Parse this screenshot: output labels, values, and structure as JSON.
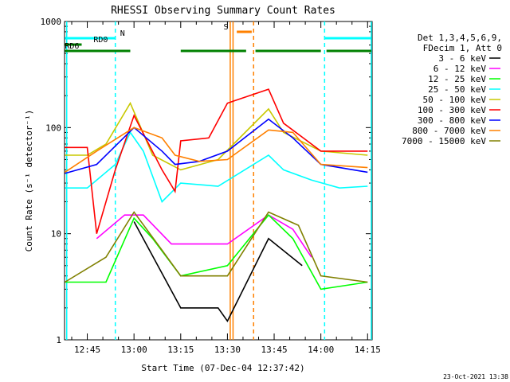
{
  "chart_data": {
    "type": "line",
    "title": "RHESSI Observing Summary Count Rates",
    "xlabel": "Start Time (07-Dec-04 12:37:42)",
    "ylabel": "Count Rate (s⁻¹ detector⁻¹)",
    "yscale": "log",
    "ylim": [
      1,
      1000
    ],
    "xlim": [
      12.6283,
      14.2744
    ],
    "yticks": [
      {
        "v": 1,
        "label": "1"
      },
      {
        "v": 10,
        "label": "10"
      },
      {
        "v": 100,
        "label": "100"
      },
      {
        "v": 1000,
        "label": "1000"
      }
    ],
    "xticks": [
      {
        "v": 12.75,
        "label": "12:45"
      },
      {
        "v": 13.0,
        "label": "13:00"
      },
      {
        "v": 13.25,
        "label": "13:15"
      },
      {
        "v": 13.5,
        "label": "13:30"
      },
      {
        "v": 13.75,
        "label": "13:45"
      },
      {
        "v": 14.0,
        "label": "14:00"
      },
      {
        "v": 14.25,
        "label": "14:15"
      }
    ],
    "legend_header": [
      "Det 1,3,4,5,6,9,",
      "FDecim 1, Att 0"
    ],
    "legend_position": "right",
    "date_stamp": "23-Oct-2021 13:38",
    "series": [
      {
        "name": "3 - 6 keV",
        "color": "#000000",
        "points": [
          [
            12.63,
            null
          ],
          [
            13.0,
            13
          ],
          [
            13.25,
            2
          ],
          [
            13.45,
            2
          ],
          [
            13.5,
            1.5
          ],
          [
            13.72,
            9
          ],
          [
            13.9,
            5
          ],
          [
            14.0,
            null
          ]
        ]
      },
      {
        "name": "6 - 12 keV",
        "color": "#ff00ff",
        "points": [
          [
            12.63,
            null
          ],
          [
            12.8,
            9
          ],
          [
            12.95,
            15
          ],
          [
            13.05,
            15
          ],
          [
            13.2,
            8
          ],
          [
            13.25,
            8
          ],
          [
            13.5,
            8
          ],
          [
            13.72,
            15
          ],
          [
            13.85,
            11
          ],
          [
            13.95,
            6
          ],
          [
            14.0,
            null
          ]
        ]
      },
      {
        "name": "12 - 25 keV",
        "color": "#00ff00",
        "points": [
          [
            12.63,
            3.5
          ],
          [
            12.85,
            3.5
          ],
          [
            13.0,
            14
          ],
          [
            13.1,
            9
          ],
          [
            13.25,
            4
          ],
          [
            13.5,
            5
          ],
          [
            13.72,
            15
          ],
          [
            13.85,
            9
          ],
          [
            14.0,
            3
          ],
          [
            14.25,
            3.5
          ]
        ]
      },
      {
        "name": "25 - 50 keV",
        "color": "#00ffff",
        "points": [
          [
            12.63,
            27
          ],
          [
            12.75,
            27
          ],
          [
            12.9,
            45
          ],
          [
            12.98,
            90
          ],
          [
            13.05,
            60
          ],
          [
            13.15,
            20
          ],
          [
            13.25,
            30
          ],
          [
            13.45,
            28
          ],
          [
            13.72,
            55
          ],
          [
            13.8,
            40
          ],
          [
            13.95,
            32
          ],
          [
            14.1,
            27
          ],
          [
            14.25,
            28
          ]
        ]
      },
      {
        "name": "50 - 100 keV",
        "color": "#c8c800",
        "points": [
          [
            12.63,
            55
          ],
          [
            12.75,
            55
          ],
          [
            12.85,
            70
          ],
          [
            12.98,
            170
          ],
          [
            13.1,
            55
          ],
          [
            13.25,
            40
          ],
          [
            13.45,
            50
          ],
          [
            13.72,
            150
          ],
          [
            13.8,
            90
          ],
          [
            14.0,
            60
          ],
          [
            14.25,
            55
          ]
        ]
      },
      {
        "name": "100 - 300 keV",
        "color": "#ff0000",
        "points": [
          [
            12.63,
            65
          ],
          [
            12.75,
            65
          ],
          [
            12.8,
            10
          ],
          [
            12.9,
            40
          ],
          [
            13.0,
            130
          ],
          [
            13.15,
            40
          ],
          [
            13.22,
            25
          ],
          [
            13.25,
            75
          ],
          [
            13.4,
            80
          ],
          [
            13.5,
            170
          ],
          [
            13.72,
            230
          ],
          [
            13.8,
            110
          ],
          [
            14.0,
            60
          ],
          [
            14.25,
            60
          ]
        ]
      },
      {
        "name": "300 - 800 keV",
        "color": "#0000ff",
        "points": [
          [
            12.63,
            37
          ],
          [
            12.8,
            45
          ],
          [
            13.0,
            100
          ],
          [
            13.15,
            60
          ],
          [
            13.22,
            45
          ],
          [
            13.35,
            48
          ],
          [
            13.5,
            60
          ],
          [
            13.72,
            120
          ],
          [
            13.85,
            80
          ],
          [
            14.0,
            45
          ],
          [
            14.25,
            38
          ]
        ]
      },
      {
        "name": "800 - 7000 keV",
        "color": "#ff8000",
        "points": [
          [
            12.63,
            38
          ],
          [
            12.8,
            60
          ],
          [
            13.0,
            100
          ],
          [
            13.15,
            80
          ],
          [
            13.22,
            55
          ],
          [
            13.35,
            48
          ],
          [
            13.5,
            50
          ],
          [
            13.72,
            95
          ],
          [
            13.85,
            90
          ],
          [
            14.0,
            45
          ],
          [
            14.25,
            42
          ]
        ]
      },
      {
        "name": "7000 - 15000 keV",
        "color": "#808000",
        "points": [
          [
            12.63,
            3.5
          ],
          [
            12.85,
            6
          ],
          [
            13.0,
            16
          ],
          [
            13.15,
            7
          ],
          [
            13.25,
            4
          ],
          [
            13.5,
            4
          ],
          [
            13.72,
            16
          ],
          [
            13.88,
            12
          ],
          [
            14.0,
            4
          ],
          [
            14.25,
            3.5
          ]
        ]
      }
    ],
    "annotations": {
      "state_bars": [
        {
          "label": "N",
          "color": "#00ffff",
          "segments": [
            [
              12.63,
              12.9
            ],
            [
              14.02,
              14.27
            ]
          ],
          "level": 1
        },
        {
          "label": "RD0",
          "color": "#008000",
          "segments": [
            [
              12.63,
              12.72
            ]
          ],
          "level": 2
        },
        {
          "label": "RD6",
          "color": "#008000",
          "segments": [
            [
              12.63,
              12.98
            ],
            [
              13.25,
              13.6
            ],
            [
              13.65,
              14.0
            ],
            [
              14.03,
              14.27
            ]
          ],
          "level": 3
        },
        {
          "label": "S",
          "color": "#ff8000",
          "segments": [
            [
              13.55,
              13.63
            ]
          ],
          "level": 0
        }
      ],
      "vlines_cyan": [
        12.64,
        14.27
      ],
      "vlines_cyan_dashed": [
        12.9,
        14.02
      ],
      "vlines_orange_solid": [
        13.515,
        13.53
      ],
      "vlines_orange_dashed": [
        13.64
      ]
    }
  }
}
